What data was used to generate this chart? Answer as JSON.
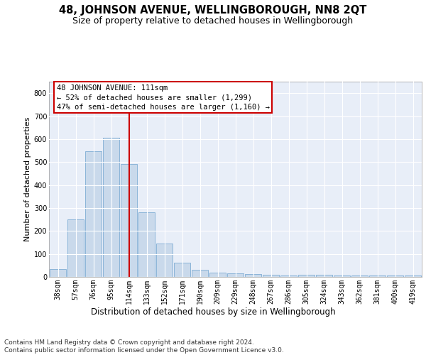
{
  "title": "48, JOHNSON AVENUE, WELLINGBOROUGH, NN8 2QT",
  "subtitle": "Size of property relative to detached houses in Wellingborough",
  "xlabel": "Distribution of detached houses by size in Wellingborough",
  "ylabel": "Number of detached properties",
  "bar_color": "#c9d9eb",
  "bar_edge_color": "#7fadd4",
  "background_color": "#e8eef8",
  "grid_color": "#ffffff",
  "vline_color": "#cc0000",
  "annotation_text": "48 JOHNSON AVENUE: 111sqm\n← 52% of detached houses are smaller (1,299)\n47% of semi-detached houses are larger (1,160) →",
  "annotation_box_color": "#cc0000",
  "categories": [
    "38sqm",
    "57sqm",
    "76sqm",
    "95sqm",
    "114sqm",
    "133sqm",
    "152sqm",
    "171sqm",
    "190sqm",
    "209sqm",
    "229sqm",
    "248sqm",
    "267sqm",
    "286sqm",
    "305sqm",
    "324sqm",
    "343sqm",
    "362sqm",
    "381sqm",
    "400sqm",
    "419sqm"
  ],
  "values": [
    33,
    250,
    548,
    607,
    493,
    281,
    145,
    62,
    32,
    20,
    15,
    11,
    10,
    6,
    9,
    9,
    6,
    5,
    5,
    6,
    6
  ],
  "vline_index": 4,
  "ylim": [
    0,
    850
  ],
  "yticks": [
    0,
    100,
    200,
    300,
    400,
    500,
    600,
    700,
    800
  ],
  "footer": "Contains HM Land Registry data © Crown copyright and database right 2024.\nContains public sector information licensed under the Open Government Licence v3.0.",
  "title_fontsize": 10.5,
  "subtitle_fontsize": 9,
  "xlabel_fontsize": 8.5,
  "ylabel_fontsize": 8,
  "tick_fontsize": 7,
  "footer_fontsize": 6.5,
  "annot_fontsize": 7.5
}
